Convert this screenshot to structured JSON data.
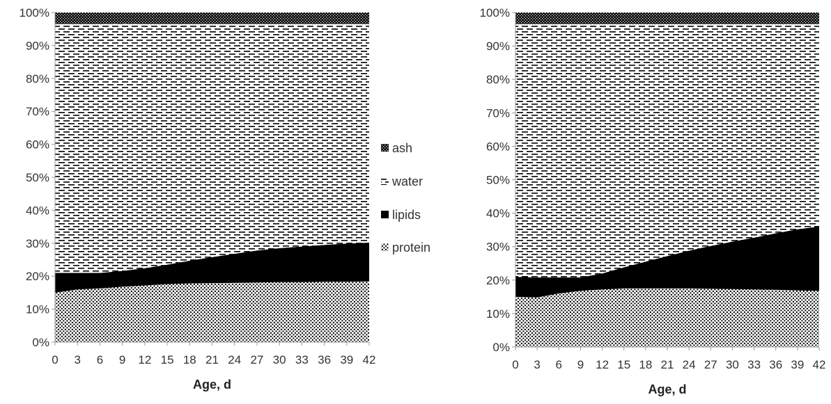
{
  "chart_data": [
    {
      "type": "area",
      "stacked": "percent",
      "title": "",
      "xlabel": "Age, d",
      "ylabel": "",
      "ylim": [
        0,
        100
      ],
      "yticks": [
        "0%",
        "10%",
        "20%",
        "30%",
        "40%",
        "50%",
        "60%",
        "70%",
        "80%",
        "90%",
        "100%"
      ],
      "x": [
        0,
        3,
        6,
        9,
        12,
        15,
        18,
        21,
        24,
        27,
        30,
        33,
        36,
        39,
        42
      ],
      "xticks": [
        "0",
        "3",
        "6",
        "9",
        "12",
        "15",
        "18",
        "21",
        "24",
        "27",
        "30",
        "33",
        "36",
        "39",
        "42"
      ],
      "series": [
        {
          "name": "protein",
          "pattern": "dots",
          "values": [
            15.0,
            16.0,
            16.3,
            16.8,
            17.2,
            17.6,
            17.8,
            17.9,
            18.0,
            18.1,
            18.2,
            18.2,
            18.3,
            18.3,
            18.4
          ]
        },
        {
          "name": "lipids",
          "pattern": "solid",
          "values": [
            6.0,
            5.0,
            4.7,
            4.8,
            5.2,
            5.9,
            6.9,
            7.9,
            8.8,
            9.7,
            10.3,
            10.8,
            11.2,
            11.6,
            11.8
          ]
        },
        {
          "name": "water",
          "pattern": "dashes",
          "values": [
            75.5,
            75.5,
            75.5,
            75.0,
            74.1,
            73.0,
            71.8,
            70.7,
            69.7,
            68.7,
            68.0,
            67.5,
            67.0,
            66.6,
            66.3
          ]
        },
        {
          "name": "ash",
          "pattern": "crosshatch",
          "values": [
            3.5,
            3.5,
            3.5,
            3.4,
            3.5,
            3.5,
            3.5,
            3.5,
            3.5,
            3.5,
            3.5,
            3.5,
            3.5,
            3.5,
            3.5
          ]
        }
      ]
    },
    {
      "type": "area",
      "stacked": "percent",
      "title": "",
      "xlabel": "Age, d",
      "ylabel": "",
      "ylim": [
        0,
        100
      ],
      "yticks": [
        "0%",
        "10%",
        "20%",
        "30%",
        "40%",
        "50%",
        "60%",
        "70%",
        "80%",
        "90%",
        "100%"
      ],
      "x": [
        0,
        3,
        6,
        9,
        12,
        15,
        18,
        21,
        24,
        27,
        30,
        33,
        36,
        39,
        42
      ],
      "xticks": [
        "0",
        "3",
        "6",
        "9",
        "12",
        "15",
        "18",
        "21",
        "24",
        "27",
        "30",
        "33",
        "36",
        "39",
        "42"
      ],
      "series": [
        {
          "name": "protein",
          "pattern": "dots",
          "values": [
            15.0,
            14.8,
            16.0,
            16.8,
            17.2,
            17.5,
            17.5,
            17.5,
            17.5,
            17.4,
            17.3,
            17.2,
            17.1,
            16.9,
            16.8
          ]
        },
        {
          "name": "lipids",
          "pattern": "solid",
          "values": [
            6.0,
            6.0,
            4.8,
            4.0,
            4.8,
            6.3,
            8.0,
            9.7,
            11.3,
            12.8,
            14.2,
            15.5,
            16.9,
            18.3,
            19.2
          ]
        },
        {
          "name": "water",
          "pattern": "dashes",
          "values": [
            75.5,
            75.7,
            75.7,
            75.7,
            74.5,
            72.7,
            71.0,
            69.3,
            67.7,
            66.3,
            65.0,
            63.8,
            62.5,
            61.3,
            60.5
          ]
        },
        {
          "name": "ash",
          "pattern": "crosshatch",
          "values": [
            3.5,
            3.5,
            3.5,
            3.5,
            3.5,
            3.5,
            3.5,
            3.5,
            3.5,
            3.5,
            3.5,
            3.5,
            3.5,
            3.5,
            3.5
          ]
        }
      ]
    }
  ],
  "legend": {
    "placement": "between-charts",
    "items": [
      {
        "label": "ash",
        "pattern": "crosshatch"
      },
      {
        "label": "water",
        "pattern": "dashes"
      },
      {
        "label": "lipids",
        "pattern": "solid"
      },
      {
        "label": "protein",
        "pattern": "dots"
      }
    ]
  },
  "colors": {
    "ink": "#000000",
    "background": "#ffffff",
    "text": "#333333"
  }
}
